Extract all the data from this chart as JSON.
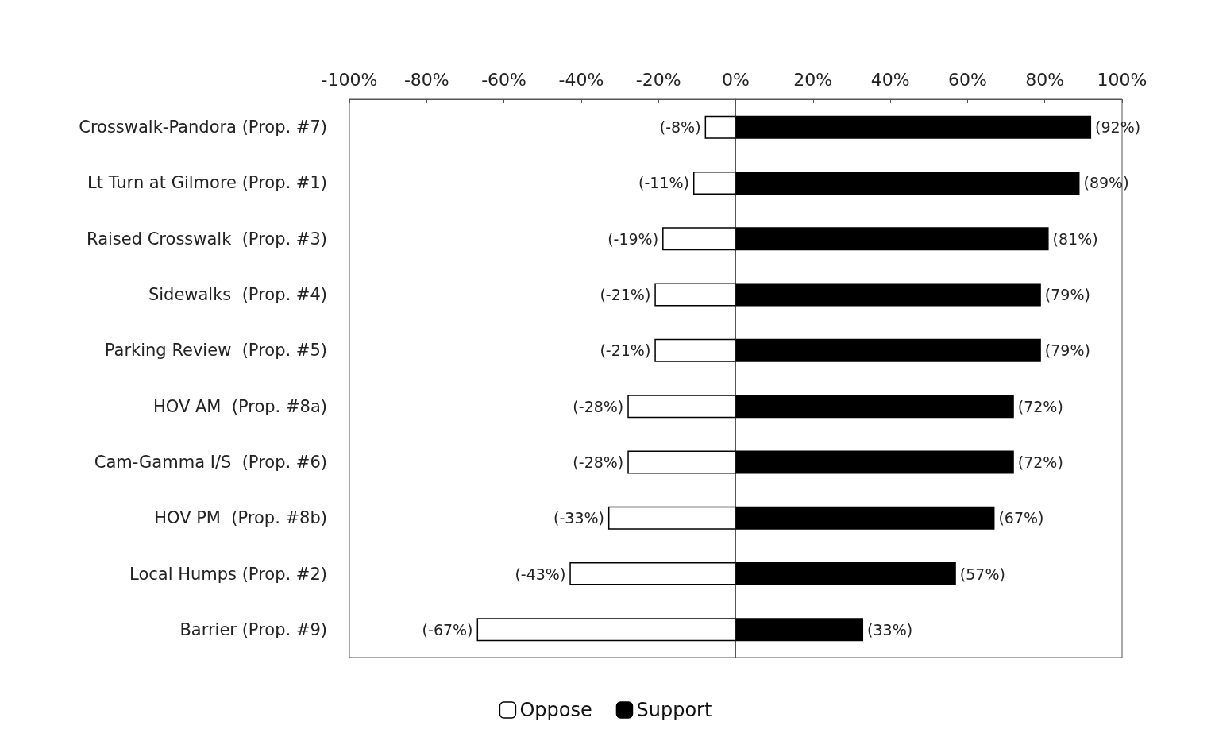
{
  "chart_data": {
    "type": "bar",
    "orientation": "horizontal",
    "stacked": true,
    "categories": [
      "Crosswalk-Pandora (Prop. #7)",
      "Lt Turn at Gilmore (Prop. #1)",
      "Raised Crosswalk  (Prop. #3)",
      "Sidewalks  (Prop. #4)",
      "Parking Review  (Prop. #5)",
      "HOV AM  (Prop. #8a)",
      "Cam-Gamma I/S  (Prop. #6)",
      "HOV PM  (Prop. #8b)",
      "Local Humps (Prop. #2)",
      "Barrier (Prop. #9)"
    ],
    "series": [
      {
        "name": "Oppose",
        "color": "#ffffff",
        "values": [
          -8,
          -11,
          -19,
          -21,
          -21,
          -28,
          -28,
          -33,
          -43,
          -67
        ],
        "value_labels": [
          "(-8%)",
          "(-11%)",
          "(-19%)",
          "(-21%)",
          "(-21%)",
          "(-28%)",
          "(-28%)",
          "(-33%)",
          "(-43%)",
          "(-67%)"
        ]
      },
      {
        "name": "Support",
        "color": "#000000",
        "values": [
          92,
          89,
          81,
          79,
          79,
          72,
          72,
          67,
          57,
          33
        ],
        "value_labels": [
          "(92%)",
          "(89%)",
          "(81%)",
          "(79%)",
          "(79%)",
          "(72%)",
          "(72%)",
          "(67%)",
          "(57%)",
          "(33%)"
        ]
      }
    ],
    "xlim": [
      -100,
      100
    ],
    "xticks": [
      {
        "value": -100,
        "label": "-100%"
      },
      {
        "value": -80,
        "label": "-80%"
      },
      {
        "value": -60,
        "label": "-60%"
      },
      {
        "value": -40,
        "label": "-40%"
      },
      {
        "value": -20,
        "label": "-20%"
      },
      {
        "value": 0,
        "label": "0%"
      },
      {
        "value": 20,
        "label": "20%"
      },
      {
        "value": 40,
        "label": "40%"
      },
      {
        "value": 60,
        "label": "60%"
      },
      {
        "value": 80,
        "label": "80%"
      },
      {
        "value": 100,
        "label": "100%"
      }
    ],
    "legend": "bottom"
  }
}
